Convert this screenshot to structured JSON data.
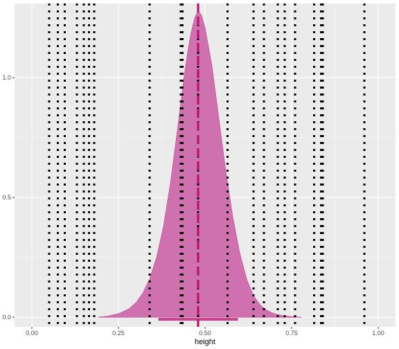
{
  "chart_data": {
    "type": "area",
    "title": "",
    "xlabel": "height",
    "ylabel": "",
    "xlim": [
      -0.05,
      1.05
    ],
    "ylim": [
      -0.04,
      1.31
    ],
    "x_ticks": [
      {
        "value": 0.0,
        "label": "0.00"
      },
      {
        "value": 0.25,
        "label": "0.25"
      },
      {
        "value": 0.5,
        "label": "0.50"
      },
      {
        "value": 0.75,
        "label": "0.75"
      },
      {
        "value": 1.0,
        "label": "1.00"
      }
    ],
    "y_ticks": [
      {
        "value": 0.0,
        "label": "0.0"
      },
      {
        "value": 0.5,
        "label": "0.5"
      },
      {
        "value": 1.0,
        "label": "1.0"
      }
    ],
    "density": {
      "x": [
        0.19,
        0.22,
        0.25,
        0.28,
        0.3,
        0.32,
        0.34,
        0.36,
        0.38,
        0.4,
        0.42,
        0.44,
        0.45,
        0.46,
        0.47,
        0.48,
        0.49,
        0.5,
        0.52,
        0.54,
        0.56,
        0.58,
        0.6,
        0.62,
        0.64,
        0.66,
        0.68,
        0.7,
        0.72,
        0.74,
        0.76,
        0.78
      ],
      "y": [
        0.0,
        0.005,
        0.015,
        0.035,
        0.06,
        0.1,
        0.16,
        0.25,
        0.38,
        0.56,
        0.78,
        1.01,
        1.11,
        1.19,
        1.25,
        1.28,
        1.26,
        1.21,
        1.05,
        0.83,
        0.61,
        0.42,
        0.27,
        0.16,
        0.09,
        0.05,
        0.028,
        0.015,
        0.008,
        0.004,
        0.002,
        0.0
      ]
    },
    "point_estimate": 0.48,
    "interval": [
      0.365,
      0.595
    ],
    "reference_lines": [
      0.05,
      0.075,
      0.095,
      0.13,
      0.15,
      0.165,
      0.18,
      0.34,
      0.43,
      0.43,
      0.435,
      0.48,
      0.565,
      0.64,
      0.67,
      0.71,
      0.73,
      0.76,
      0.815,
      0.835,
      0.84,
      0.96
    ],
    "colors": {
      "panel": "#ebebeb",
      "grid_major": "#ffffff",
      "grid_minor": "#f5f5f5",
      "density_fill": "#cc66a8",
      "density_line": "#c8408f",
      "estimate_line": "#b8126e",
      "interval": "#c8408f",
      "reference_line": "#000000"
    },
    "grid": true,
    "legend": "none"
  }
}
